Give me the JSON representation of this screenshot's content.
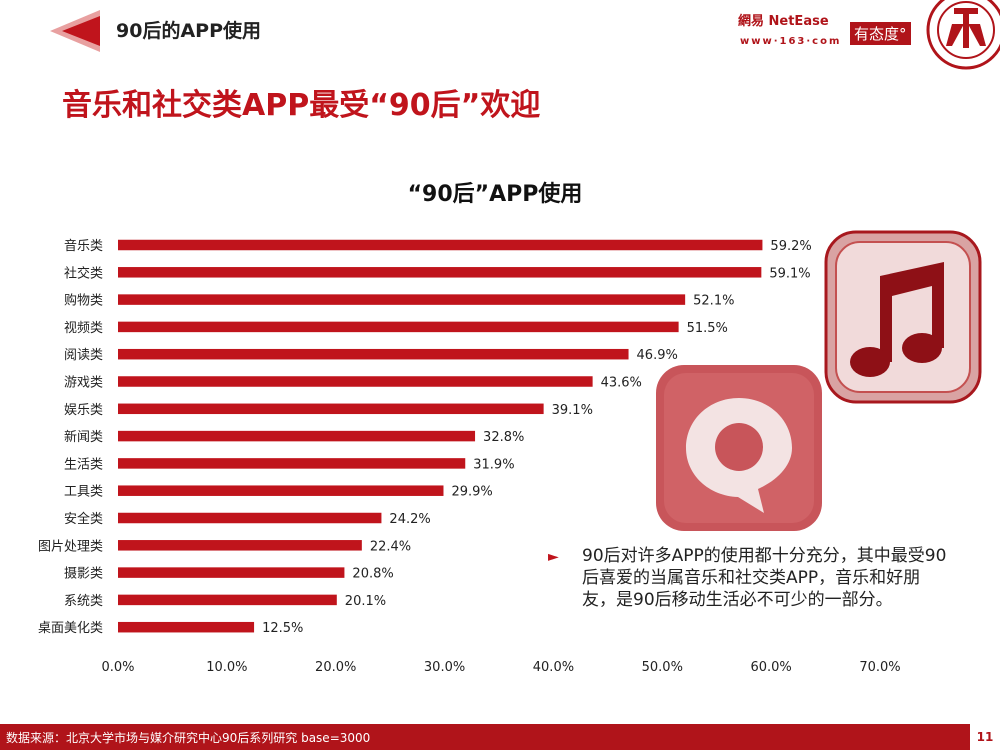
{
  "header": {
    "title": "90后的APP使用",
    "logo_text": "網易 NetEase",
    "logo_sub": "www·163·com",
    "logo_badge": "有态度°"
  },
  "colors": {
    "accent": "#c0141c",
    "dark_red": "#b0141a"
  },
  "main_title": "音乐和社交类APP最受“90后”欢迎",
  "chart_data": {
    "type": "bar",
    "orientation": "horizontal",
    "title": "“90后”APP使用",
    "categories": [
      "音乐类",
      "社交类",
      "购物类",
      "视频类",
      "阅读类",
      "游戏类",
      "娱乐类",
      "新闻类",
      "生活类",
      "工具类",
      "安全类",
      "图片处理类",
      "摄影类",
      "系统类",
      "桌面美化类"
    ],
    "values": [
      59.2,
      59.1,
      52.1,
      51.5,
      46.9,
      43.6,
      39.1,
      32.8,
      31.9,
      29.9,
      24.2,
      22.4,
      20.8,
      20.1,
      12.5
    ],
    "value_labels": [
      "59.2%",
      "59.1%",
      "52.1%",
      "51.5%",
      "46.9%",
      "43.6%",
      "39.1%",
      "32.8%",
      "31.9%",
      "29.9%",
      "24.2%",
      "22.4%",
      "20.8%",
      "20.1%",
      "12.5%"
    ],
    "xlim": [
      0,
      70
    ],
    "xticks": [
      "0.0%",
      "10.0%",
      "20.0%",
      "30.0%",
      "40.0%",
      "50.0%",
      "60.0%",
      "70.0%"
    ],
    "bar_color": "#c0141c",
    "grid": false
  },
  "note": {
    "bullet": "►",
    "text": "90后对许多APP的使用都十分充分，其中最受90后喜爱的当属音乐和社交类APP，音乐和好朋友，是90后移动生活必不可少的一部分。"
  },
  "footer": {
    "source": "数据来源：北京大学市场与媒介研究中心90后系列研究 base=3000",
    "page": "11"
  },
  "icons": [
    "music-note-icon",
    "q-chat-icon",
    "university-seal-icon"
  ]
}
